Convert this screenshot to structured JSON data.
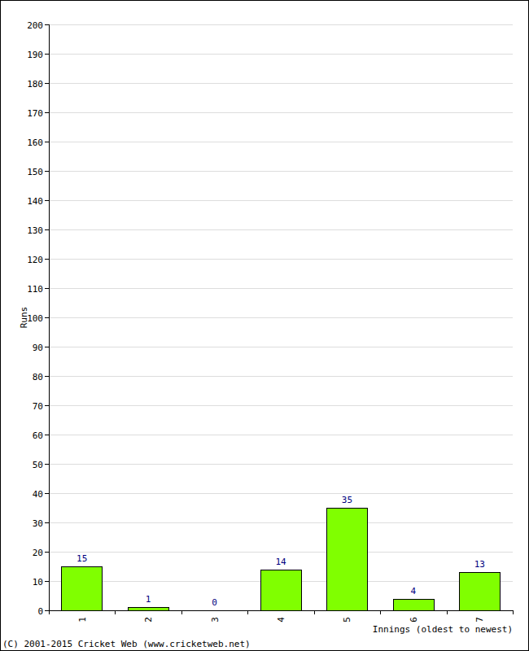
{
  "chart_data": {
    "type": "bar",
    "x_label": "Innings (oldest to newest)",
    "y_label": "Runs",
    "annotations": [
      "(C) 2001-2015 Cricket Web (www.cricketweb.net)"
    ],
    "categories": [
      "1",
      "2",
      "3",
      "4",
      "5",
      "6",
      "7"
    ],
    "values": [
      15,
      1,
      0,
      14,
      35,
      4,
      13
    ],
    "color": "#80ff00",
    "ylim": [
      0,
      200
    ],
    "yticks": [
      0,
      10,
      20,
      30,
      40,
      50,
      60,
      70,
      80,
      90,
      100,
      110,
      120,
      130,
      140,
      150,
      160,
      170,
      180,
      190,
      200
    ],
    "grid": true,
    "data_labels": true
  }
}
